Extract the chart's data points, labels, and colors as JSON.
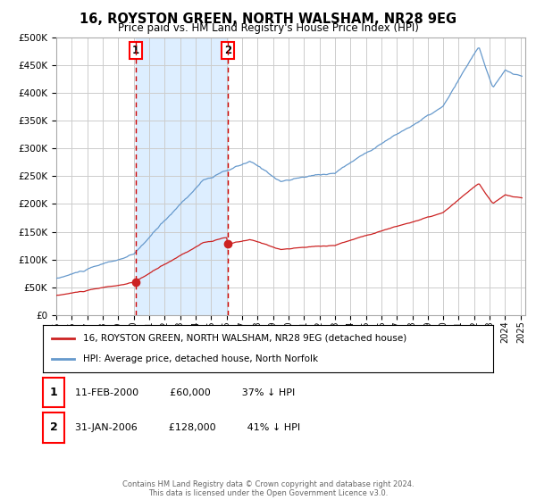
{
  "title": "16, ROYSTON GREEN, NORTH WALSHAM, NR28 9EG",
  "subtitle": "Price paid vs. HM Land Registry's House Price Index (HPI)",
  "footer": "Contains HM Land Registry data © Crown copyright and database right 2024.\nThis data is licensed under the Open Government Licence v3.0.",
  "legend_line1": "16, ROYSTON GREEN, NORTH WALSHAM, NR28 9EG (detached house)",
  "legend_line2": "HPI: Average price, detached house, North Norfolk",
  "transaction1_label": "1",
  "transaction1_date": "11-FEB-2000",
  "transaction1_price": "£60,000",
  "transaction1_hpi": "37% ↓ HPI",
  "transaction1_year": 2000.11,
  "transaction1_value": 60000,
  "transaction2_label": "2",
  "transaction2_date": "31-JAN-2006",
  "transaction2_price": "£128,000",
  "transaction2_hpi": "41% ↓ HPI",
  "transaction2_year": 2006.08,
  "transaction2_value": 128000,
  "hpi_color": "#6699cc",
  "price_color": "#cc2222",
  "vline_color": "#cc0000",
  "shade_color": "#ddeeff",
  "background_color": "#ffffff",
  "grid_color": "#cccccc",
  "ylim": [
    0,
    500000
  ],
  "xlim_start": 1995.0,
  "xlim_end": 2025.3
}
